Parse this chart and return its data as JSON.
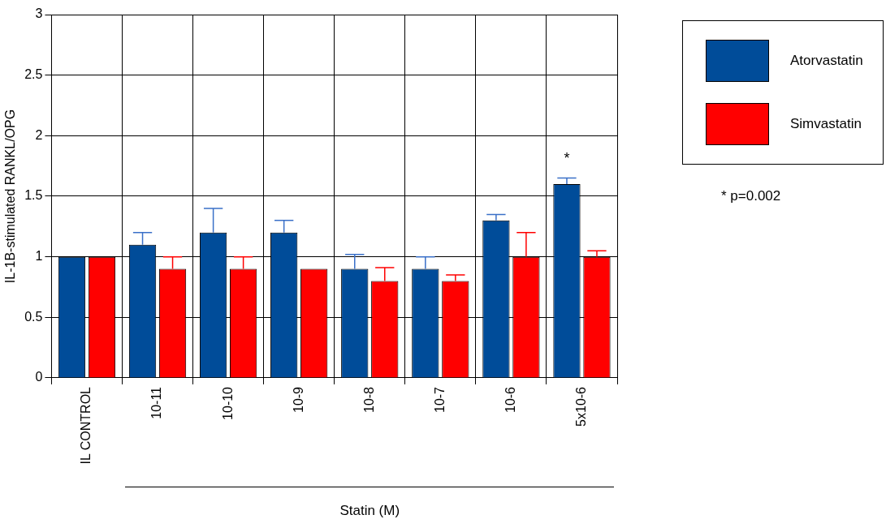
{
  "chart_data": {
    "type": "bar",
    "ylabel": "IL-1B-stimulated RANKL/OPG",
    "xlabel": "Statin (M)",
    "categories": [
      "IL CONTROL",
      "10-11",
      "10-10",
      "10-9",
      "10-8",
      "10-7",
      "10-6",
      "5x10-6"
    ],
    "series": [
      {
        "name": "Atorvastatin",
        "color": "#004c99",
        "values": [
          1.0,
          1.1,
          1.2,
          1.2,
          0.9,
          0.9,
          1.3,
          1.6
        ],
        "errors": [
          null,
          [
            1.1,
            1.2
          ],
          [
            1.2,
            1.4
          ],
          [
            1.2,
            1.3
          ],
          [
            0.9,
            1.02
          ],
          [
            0.9,
            1.0
          ],
          [
            1.3,
            1.35
          ],
          [
            1.6,
            1.65
          ]
        ]
      },
      {
        "name": "Simvastatin",
        "color": "#ff0000",
        "values": [
          1.0,
          0.9,
          0.9,
          0.9,
          0.8,
          0.8,
          1.0,
          1.0
        ],
        "errors": [
          null,
          [
            0.9,
            1.0
          ],
          [
            0.9,
            1.0
          ],
          null,
          [
            0.8,
            0.91
          ],
          [
            0.8,
            0.85
          ],
          [
            1.0,
            1.2
          ],
          [
            1.0,
            1.05
          ]
        ]
      }
    ],
    "ylim": [
      0,
      3
    ],
    "yticks": [
      0,
      0.5,
      1,
      1.5,
      2,
      2.5,
      3
    ],
    "grid": true,
    "legend": "top right",
    "annotations": [
      "*",
      "* p=0.002"
    ]
  }
}
